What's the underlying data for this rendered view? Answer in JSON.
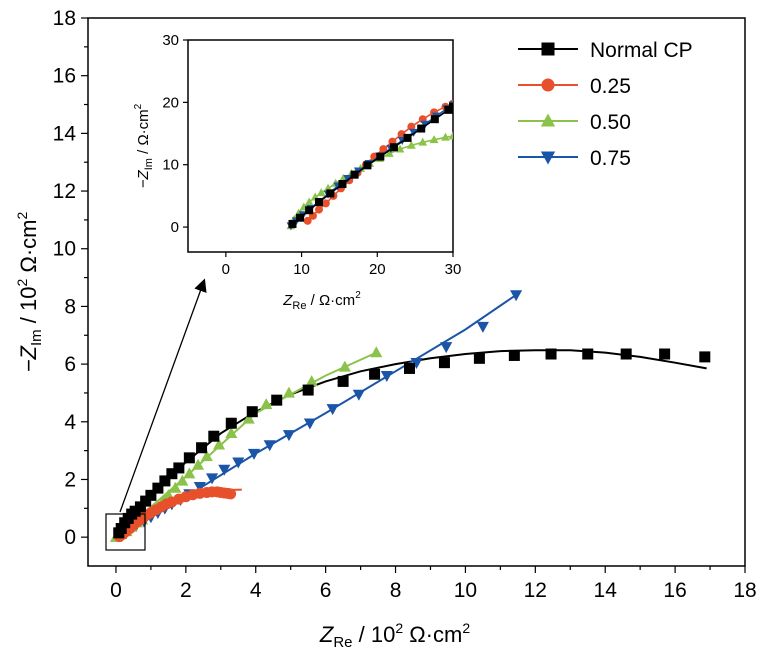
{
  "chart_data": [
    {
      "type": "scatter",
      "title": "",
      "x_axis": {
        "label_main": "Z",
        "label_sub": "Re",
        "label_unit_prefix": " / 10",
        "label_unit_sup": "2",
        "label_unit_suffix": " Ω·cm",
        "label_unit_sup2": "2",
        "range": [
          -0.8,
          18
        ],
        "ticks": [
          "0",
          "2",
          "4",
          "6",
          "8",
          "10",
          "12",
          "14",
          "16",
          "18"
        ],
        "tick_values": [
          0,
          2,
          4,
          6,
          8,
          10,
          12,
          14,
          16,
          18
        ]
      },
      "y_axis": {
        "label_main": "−Z",
        "label_sub": "Im",
        "label_unit_prefix": " / 10",
        "label_unit_sup": "2",
        "label_unit_suffix": " Ω·cm",
        "label_unit_sup2": "2",
        "range": [
          -1,
          18
        ],
        "ticks": [
          "0",
          "2",
          "4",
          "6",
          "8",
          "10",
          "12",
          "14",
          "16",
          "18"
        ],
        "tick_values": [
          0,
          2,
          4,
          6,
          8,
          10,
          12,
          14,
          16,
          18
        ]
      },
      "legend": {
        "position": "top-right"
      },
      "series": [
        {
          "name": "Normal CP",
          "color": "#000000",
          "marker": "square",
          "points": [
            [
              0.08,
              0.15
            ],
            [
              0.15,
              0.3
            ],
            [
              0.25,
              0.5
            ],
            [
              0.35,
              0.65
            ],
            [
              0.45,
              0.8
            ],
            [
              0.55,
              0.9
            ],
            [
              0.7,
              1.05
            ],
            [
              0.85,
              1.25
            ],
            [
              1.0,
              1.45
            ],
            [
              1.2,
              1.7
            ],
            [
              1.4,
              1.95
            ],
            [
              1.6,
              2.2
            ],
            [
              1.8,
              2.4
            ],
            [
              2.1,
              2.75
            ],
            [
              2.45,
              3.1
            ],
            [
              2.8,
              3.5
            ],
            [
              3.3,
              3.95
            ],
            [
              3.9,
              4.35
            ],
            [
              4.6,
              4.75
            ],
            [
              5.5,
              5.1
            ],
            [
              6.5,
              5.4
            ],
            [
              7.4,
              5.65
            ],
            [
              8.4,
              5.85
            ],
            [
              9.4,
              6.05
            ],
            [
              10.4,
              6.2
            ],
            [
              11.4,
              6.3
            ],
            [
              12.45,
              6.35
            ],
            [
              13.5,
              6.35
            ],
            [
              14.6,
              6.35
            ],
            [
              15.7,
              6.35
            ],
            [
              16.85,
              6.25
            ]
          ],
          "fit": [
            [
              0,
              0
            ],
            [
              0.5,
              0.85
            ],
            [
              1,
              1.45
            ],
            [
              2,
              2.6
            ],
            [
              3,
              3.6
            ],
            [
              4,
              4.35
            ],
            [
              5,
              4.95
            ],
            [
              6,
              5.4
            ],
            [
              7,
              5.75
            ],
            [
              8,
              6.0
            ],
            [
              9,
              6.2
            ],
            [
              10,
              6.35
            ],
            [
              11,
              6.45
            ],
            [
              12,
              6.48
            ],
            [
              13,
              6.48
            ],
            [
              14,
              6.4
            ],
            [
              15,
              6.25
            ],
            [
              16,
              6.05
            ],
            [
              16.9,
              5.85
            ]
          ]
        },
        {
          "name": "0.25",
          "color": "#e8502c",
          "marker": "circle",
          "points": [
            [
              0.1,
              0.02
            ],
            [
              0.2,
              0.1
            ],
            [
              0.3,
              0.2
            ],
            [
              0.4,
              0.3
            ],
            [
              0.5,
              0.42
            ],
            [
              0.6,
              0.52
            ],
            [
              0.7,
              0.6
            ],
            [
              0.8,
              0.7
            ],
            [
              0.9,
              0.78
            ],
            [
              1.0,
              0.85
            ],
            [
              1.15,
              0.95
            ],
            [
              1.3,
              1.05
            ],
            [
              1.45,
              1.15
            ],
            [
              1.6,
              1.22
            ],
            [
              1.8,
              1.32
            ],
            [
              2.0,
              1.4
            ],
            [
              2.2,
              1.47
            ],
            [
              2.4,
              1.52
            ],
            [
              2.6,
              1.55
            ],
            [
              2.75,
              1.57
            ],
            [
              2.9,
              1.57
            ],
            [
              3.0,
              1.55
            ],
            [
              3.1,
              1.53
            ],
            [
              3.2,
              1.52
            ],
            [
              3.28,
              1.5
            ]
          ],
          "fit": [
            [
              0.1,
              0.05
            ],
            [
              1,
              0.9
            ],
            [
              2,
              1.45
            ],
            [
              2.8,
              1.62
            ],
            [
              3.6,
              1.65
            ]
          ]
        },
        {
          "name": "0.50",
          "color": "#8bc34a",
          "marker": "triangle-up",
          "points": [
            [
              0.0,
              0.0
            ],
            [
              0.15,
              0.1
            ],
            [
              0.3,
              0.2
            ],
            [
              0.45,
              0.35
            ],
            [
              0.6,
              0.5
            ],
            [
              0.75,
              0.6
            ],
            [
              0.9,
              0.75
            ],
            [
              1.05,
              0.9
            ],
            [
              1.2,
              1.05
            ],
            [
              1.35,
              1.25
            ],
            [
              1.5,
              1.45
            ],
            [
              1.7,
              1.7
            ],
            [
              1.9,
              1.95
            ],
            [
              2.1,
              2.2
            ],
            [
              2.35,
              2.5
            ],
            [
              2.6,
              2.8
            ],
            [
              2.95,
              3.2
            ],
            [
              3.3,
              3.6
            ],
            [
              3.8,
              4.1
            ],
            [
              4.3,
              4.6
            ],
            [
              4.95,
              5.0
            ],
            [
              5.6,
              5.4
            ],
            [
              6.55,
              5.9
            ],
            [
              7.45,
              6.4
            ]
          ],
          "fit": [
            [
              0,
              0
            ],
            [
              2,
              2.1
            ],
            [
              4,
              4.3
            ],
            [
              6,
              5.6
            ],
            [
              7.45,
              6.4
            ]
          ]
        },
        {
          "name": "0.75",
          "color": "#1a55a8",
          "marker": "triangle-down",
          "points": [
            [
              0.1,
              0.05
            ],
            [
              0.2,
              0.15
            ],
            [
              0.3,
              0.25
            ],
            [
              0.45,
              0.35
            ],
            [
              0.6,
              0.45
            ],
            [
              0.8,
              0.55
            ],
            [
              1.0,
              0.7
            ],
            [
              1.2,
              0.85
            ],
            [
              1.4,
              1.0
            ],
            [
              1.6,
              1.15
            ],
            [
              1.85,
              1.3
            ],
            [
              2.1,
              1.5
            ],
            [
              2.4,
              1.75
            ],
            [
              2.75,
              2.05
            ],
            [
              3.1,
              2.35
            ],
            [
              3.5,
              2.6
            ],
            [
              3.95,
              2.9
            ],
            [
              4.4,
              3.2
            ],
            [
              4.95,
              3.55
            ],
            [
              5.55,
              3.95
            ],
            [
              6.2,
              4.45
            ],
            [
              6.95,
              4.95
            ],
            [
              7.75,
              5.6
            ],
            [
              8.6,
              6.05
            ],
            [
              9.45,
              6.6
            ],
            [
              10.5,
              7.3
            ],
            [
              11.45,
              8.4
            ]
          ],
          "fit": [
            [
              0.1,
              0.05
            ],
            [
              2,
              1.4
            ],
            [
              4,
              2.9
            ],
            [
              6,
              4.3
            ],
            [
              8,
              5.75
            ],
            [
              10,
              7.2
            ],
            [
              11.45,
              8.4
            ]
          ]
        }
      ]
    },
    {
      "type": "scatter",
      "title": "",
      "inset": true,
      "x_axis": {
        "label_main": "Z",
        "label_sub": "Re",
        "label_unit": " / Ω·cm",
        "label_unit_sup": "2",
        "range": [
          -5,
          30
        ],
        "ticks": [
          "0",
          "10",
          "20",
          "30"
        ],
        "tick_values": [
          0,
          10,
          20,
          30
        ]
      },
      "y_axis": {
        "label_main": "−Z",
        "label_sub": "Im",
        "label_unit": " / Ω·cm",
        "label_unit_sup": "2",
        "range": [
          -4,
          30
        ],
        "ticks": [
          "0",
          "10",
          "20",
          "30"
        ],
        "tick_values": [
          0,
          10,
          20,
          30
        ]
      },
      "series": [
        {
          "name": "0.50",
          "color": "#8bc34a",
          "points": [
            [
              8.6,
              0.2
            ],
            [
              9,
              1.2
            ],
            [
              9.6,
              2.2
            ],
            [
              10.3,
              3.2
            ],
            [
              11,
              4
            ],
            [
              11.8,
              4.8
            ],
            [
              12.6,
              5.5
            ],
            [
              13.5,
              6.2
            ],
            [
              14.5,
              7
            ],
            [
              15.5,
              7.8
            ],
            [
              16.6,
              8.6
            ],
            [
              17.8,
              9.4
            ],
            [
              19,
              10.2
            ],
            [
              20.3,
              11
            ],
            [
              21.6,
              11.8
            ],
            [
              23,
              12.5
            ],
            [
              24.5,
              13.1
            ],
            [
              26,
              13.6
            ],
            [
              27.5,
              14
            ],
            [
              29,
              14.4
            ],
            [
              30,
              14.6
            ]
          ]
        },
        {
          "name": "0.25",
          "color": "#e8502c",
          "points": [
            [
              10.8,
              1
            ],
            [
              11.5,
              1.8
            ],
            [
              12.3,
              2.8
            ],
            [
              13.2,
              3.8
            ],
            [
              14.2,
              5
            ],
            [
              15.2,
              6.2
            ],
            [
              16.3,
              7.5
            ],
            [
              17.4,
              8.7
            ],
            [
              18.5,
              10
            ],
            [
              19.6,
              11.3
            ],
            [
              20.8,
              12.5
            ],
            [
              22,
              13.7
            ],
            [
              23.2,
              14.9
            ],
            [
              24.5,
              16.1
            ],
            [
              26,
              17.3
            ],
            [
              27.5,
              18.4
            ],
            [
              29,
              19.3
            ],
            [
              30,
              19.8
            ]
          ]
        },
        {
          "name": "0.75",
          "color": "#1a55a8",
          "points": [
            [
              8.6,
              0.2
            ],
            [
              9.3,
              1
            ],
            [
              10.2,
              2
            ],
            [
              11.2,
              3
            ],
            [
              12.3,
              4.1
            ],
            [
              13.5,
              5.3
            ],
            [
              14.8,
              6.6
            ],
            [
              16.1,
              7.8
            ],
            [
              17.5,
              9
            ],
            [
              18.9,
              10.2
            ],
            [
              20.3,
              11.4
            ],
            [
              21.8,
              12.6
            ],
            [
              23.3,
              13.9
            ],
            [
              24.8,
              15.2
            ],
            [
              26.3,
              16.5
            ],
            [
              27.8,
              17.8
            ],
            [
              29.2,
              19
            ],
            [
              30,
              19.6
            ]
          ]
        },
        {
          "name": "Normal CP",
          "color": "#000000",
          "points": [
            [
              8.8,
              0.5
            ],
            [
              9.8,
              1.5
            ],
            [
              11,
              2.7
            ],
            [
              12.3,
              4
            ],
            [
              13.8,
              5.4
            ],
            [
              15.4,
              6.9
            ],
            [
              17,
              8.4
            ],
            [
              18.7,
              9.9
            ],
            [
              20.4,
              11.3
            ],
            [
              22.2,
              12.8
            ],
            [
              24,
              14.3
            ],
            [
              25.8,
              15.8
            ],
            [
              27.6,
              17.3
            ],
            [
              29.4,
              18.8
            ],
            [
              30,
              19.3
            ]
          ]
        }
      ]
    }
  ]
}
